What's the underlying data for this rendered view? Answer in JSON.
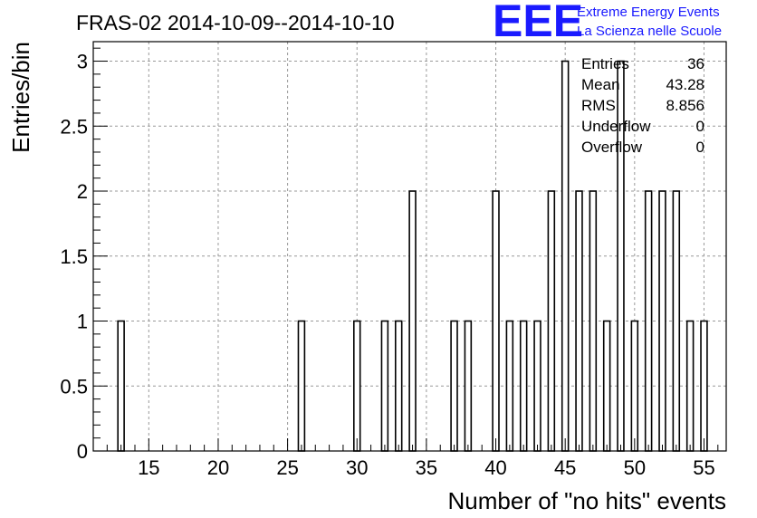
{
  "chart_data": {
    "type": "bar",
    "title": "FRAS-02 2014-10-09--2014-10-10",
    "xlabel": "Number of \"no hits\" events",
    "ylabel": "Entries/bin",
    "xlim": [
      11,
      56.6
    ],
    "ylim": [
      0,
      3.15
    ],
    "x_ticks": [
      15,
      20,
      25,
      30,
      35,
      40,
      45,
      50,
      55
    ],
    "y_ticks": [
      0,
      0.5,
      1,
      1.5,
      2,
      2.5,
      3
    ],
    "x_tick_labels": [
      "15",
      "20",
      "25",
      "30",
      "35",
      "40",
      "45",
      "50",
      "55"
    ],
    "y_tick_labels": [
      "0",
      "0.5",
      "1",
      "1.5",
      "2",
      "2.5",
      "3"
    ],
    "bin_width": 0.45,
    "grid": true,
    "bars": [
      {
        "x": 13,
        "value": 1
      },
      {
        "x": 26,
        "value": 1
      },
      {
        "x": 30,
        "value": 1
      },
      {
        "x": 32,
        "value": 1
      },
      {
        "x": 33,
        "value": 1
      },
      {
        "x": 34,
        "value": 2
      },
      {
        "x": 37,
        "value": 1
      },
      {
        "x": 38,
        "value": 1
      },
      {
        "x": 40,
        "value": 2
      },
      {
        "x": 41,
        "value": 1
      },
      {
        "x": 42,
        "value": 1
      },
      {
        "x": 43,
        "value": 1
      },
      {
        "x": 44,
        "value": 2
      },
      {
        "x": 45,
        "value": 3
      },
      {
        "x": 46,
        "value": 2
      },
      {
        "x": 47,
        "value": 2
      },
      {
        "x": 48,
        "value": 1
      },
      {
        "x": 49,
        "value": 3
      },
      {
        "x": 50,
        "value": 1
      },
      {
        "x": 51,
        "value": 2
      },
      {
        "x": 52,
        "value": 2
      },
      {
        "x": 53,
        "value": 2
      },
      {
        "x": 54,
        "value": 1
      },
      {
        "x": 55,
        "value": 1
      }
    ],
    "stats": [
      {
        "label": "Entries",
        "value": "36"
      },
      {
        "label": "Mean",
        "value": "43.28"
      },
      {
        "label": "RMS",
        "value": "8.856"
      },
      {
        "label": "Underflow",
        "value": "0"
      },
      {
        "label": "Overflow",
        "value": "0"
      }
    ],
    "stats_placement": "top-right"
  },
  "logo": {
    "mark": "EEE",
    "line1": "Extreme Energy Events",
    "line2": "La Scienza nelle Scuole",
    "color": "#1a1aff"
  }
}
